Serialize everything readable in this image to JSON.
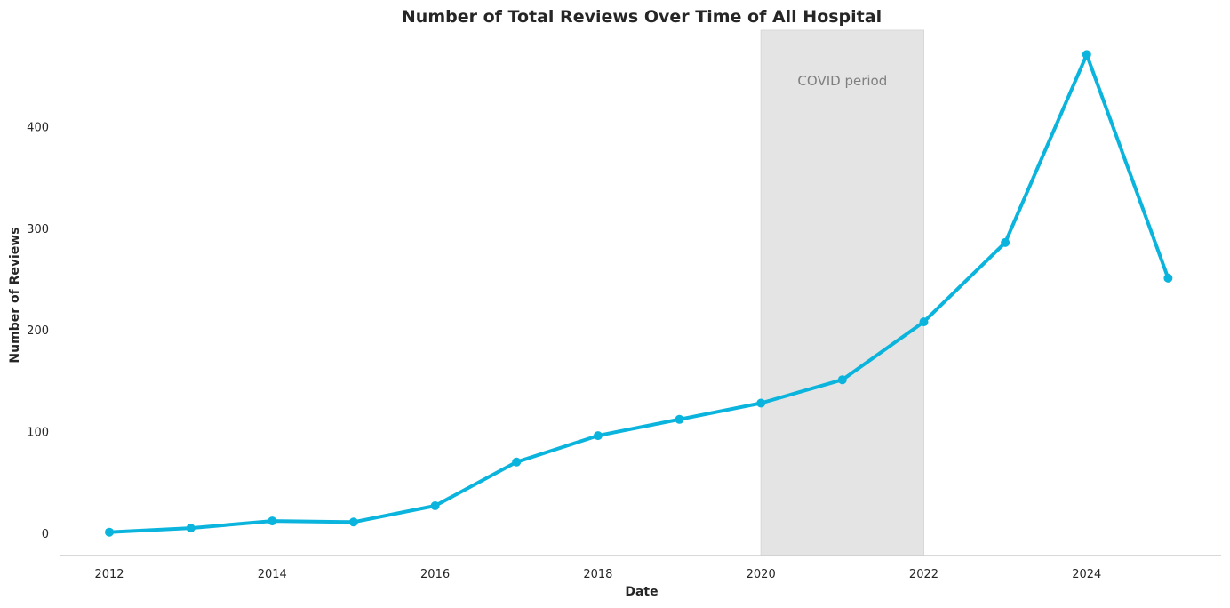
{
  "chart_data": {
    "type": "line",
    "title": "Number of Total Reviews Over Time of All Hospital",
    "xlabel": "Date",
    "ylabel": "Number of Reviews",
    "xlim": [
      2011.4,
      2025.65
    ],
    "ylim": [
      -22,
      495
    ],
    "xticks": [
      "2012",
      "2014",
      "2016",
      "2018",
      "2020",
      "2022",
      "2024"
    ],
    "yticks": [
      "0",
      "100",
      "200",
      "300",
      "400"
    ],
    "grid": false,
    "legend": "none",
    "colors": {
      "line": "#0ab4dc",
      "span": "#e4e4e4",
      "annotation": "#7f7f7f"
    },
    "series": [
      {
        "x": [
          2012,
          2013,
          2014,
          2015,
          2016,
          2017,
          2018,
          2019,
          2020,
          2021,
          2022,
          2023,
          2024,
          2025
        ],
        "values": [
          1,
          5,
          12,
          11,
          27,
          70,
          96,
          112,
          128,
          151,
          208,
          286,
          471,
          251
        ]
      }
    ],
    "shaded_region": {
      "x_start": 2020,
      "x_end": 2022,
      "label": "COVID period"
    }
  }
}
